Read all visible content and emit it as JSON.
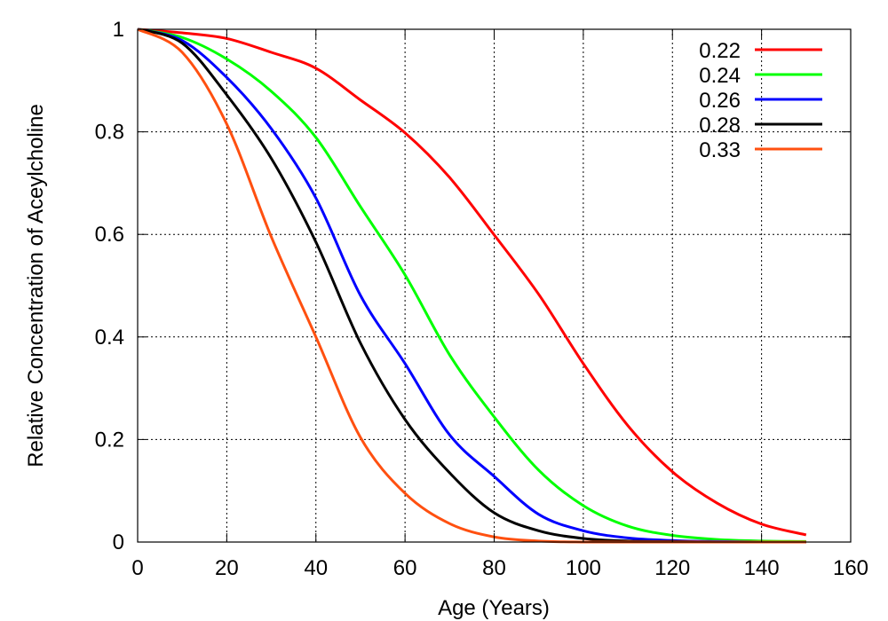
{
  "chart_data": {
    "type": "line",
    "title": "",
    "xlabel": "Age (Years)",
    "ylabel": "Relative Concentration of Aceylcholine",
    "xlim": [
      0,
      160
    ],
    "ylim": [
      0,
      1
    ],
    "xticks": [
      0,
      20,
      40,
      60,
      80,
      100,
      120,
      140,
      160
    ],
    "xtick_labels": [
      "0",
      "20",
      "40",
      "60",
      "80",
      "100",
      "120",
      "140",
      "160"
    ],
    "yticks": [
      0,
      0.2,
      0.4,
      0.6,
      0.8,
      1
    ],
    "ytick_labels": [
      "0",
      "0.2",
      "0.4",
      "0.6",
      "0.8",
      "1"
    ],
    "grid": true,
    "legend_position": "top-right",
    "x": [
      0,
      10,
      20,
      30,
      40,
      50,
      60,
      70,
      80,
      90,
      100,
      110,
      120,
      130,
      140,
      150
    ],
    "series": [
      {
        "name": "0.22",
        "color": "#ff0000",
        "values": [
          1,
          0.993,
          0.982,
          0.955,
          0.924,
          0.862,
          0.798,
          0.711,
          0.599,
          0.483,
          0.348,
          0.227,
          0.137,
          0.076,
          0.035,
          0.014
        ]
      },
      {
        "name": "0.24",
        "color": "#00ff00",
        "values": [
          1,
          0.984,
          0.942,
          0.879,
          0.789,
          0.654,
          0.521,
          0.365,
          0.244,
          0.14,
          0.071,
          0.031,
          0.013,
          0.005,
          0.002,
          0.001
        ]
      },
      {
        "name": "0.26",
        "color": "#0000ff",
        "values": [
          1,
          0.978,
          0.906,
          0.806,
          0.671,
          0.481,
          0.348,
          0.209,
          0.128,
          0.054,
          0.022,
          0.008,
          0.003,
          0.001,
          0,
          0
        ]
      },
      {
        "name": "0.28",
        "color": "#000000",
        "values": [
          1,
          0.973,
          0.872,
          0.748,
          0.585,
          0.388,
          0.239,
          0.135,
          0.057,
          0.022,
          0.007,
          0.002,
          0.001,
          0,
          0,
          0
        ]
      },
      {
        "name": "0.33",
        "color": "#ff5010",
        "values": [
          1,
          0.955,
          0.815,
          0.595,
          0.4,
          0.204,
          0.095,
          0.036,
          0.01,
          0.002,
          0,
          0,
          0,
          0,
          0,
          0
        ]
      }
    ]
  }
}
